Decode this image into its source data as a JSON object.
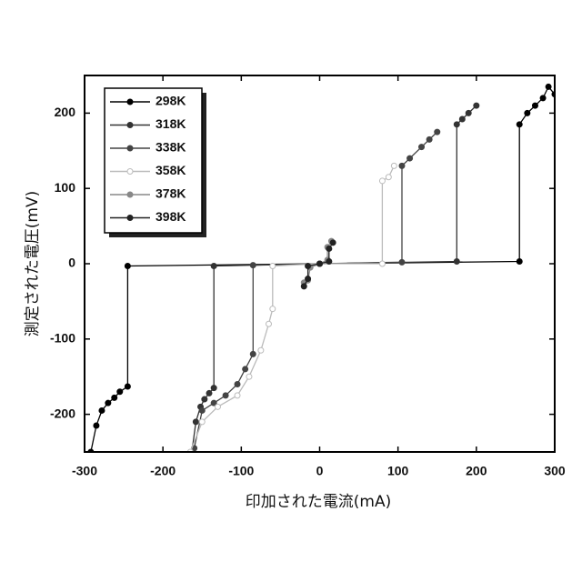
{
  "chart_data": {
    "type": "line",
    "xlabel": "印加された電流(mA)",
    "ylabel": "測定された電圧(mV)",
    "xlim": [
      -300,
      300
    ],
    "xticks": [
      -300,
      -200,
      -100,
      0,
      100,
      200,
      300
    ],
    "ylim": [
      -250,
      250
    ],
    "yticks": [
      -200,
      -100,
      0,
      100,
      200
    ],
    "legend": "upper left",
    "series": [
      {
        "name": "298K",
        "color": "#000000",
        "x": [
          -292,
          -285,
          -278,
          -270,
          -262,
          -255,
          -245,
          -245,
          0,
          255,
          255,
          265,
          275,
          285,
          292,
          300
        ],
        "values": [
          -250,
          -215,
          -195,
          -185,
          -178,
          -170,
          -163,
          -3,
          0,
          3,
          185,
          200,
          210,
          220,
          235,
          225
        ]
      },
      {
        "name": "318K",
        "color": "#333333",
        "x": [
          -163,
          -158,
          -152,
          -147,
          -141,
          -135,
          -135,
          0,
          175,
          175,
          182,
          190,
          200
        ],
        "values": [
          -250,
          -210,
          -190,
          -180,
          -172,
          -165,
          -3,
          0,
          3,
          185,
          192,
          200,
          210
        ]
      },
      {
        "name": "338K",
        "color": "#444444",
        "x": [
          -160,
          -150,
          -135,
          -120,
          -105,
          -95,
          -85,
          -85,
          0,
          105,
          105,
          115,
          130,
          140,
          150
        ],
        "values": [
          -245,
          -195,
          -185,
          -175,
          -160,
          -140,
          -120,
          -2,
          0,
          2,
          130,
          140,
          155,
          165,
          175
        ]
      },
      {
        "name": "358K",
        "color": "#bbbbbb",
        "x": [
          -165,
          -150,
          -130,
          -105,
          -90,
          -75,
          -65,
          -60,
          -60,
          0,
          80,
          80,
          88,
          95
        ],
        "values": [
          -250,
          -210,
          -190,
          -175,
          -150,
          -115,
          -80,
          -60,
          -3,
          0,
          0,
          110,
          115,
          130
        ]
      },
      {
        "name": "378K",
        "color": "#888888",
        "x": [
          -20,
          -15,
          -12,
          0,
          10,
          10,
          15
        ],
        "values": [
          -25,
          -22,
          -5,
          0,
          5,
          22,
          30
        ]
      },
      {
        "name": "398K",
        "color": "#222222",
        "x": [
          -20,
          -15,
          -15,
          0,
          12,
          12,
          17
        ],
        "values": [
          -30,
          -20,
          -3,
          0,
          3,
          20,
          28
        ]
      }
    ]
  }
}
